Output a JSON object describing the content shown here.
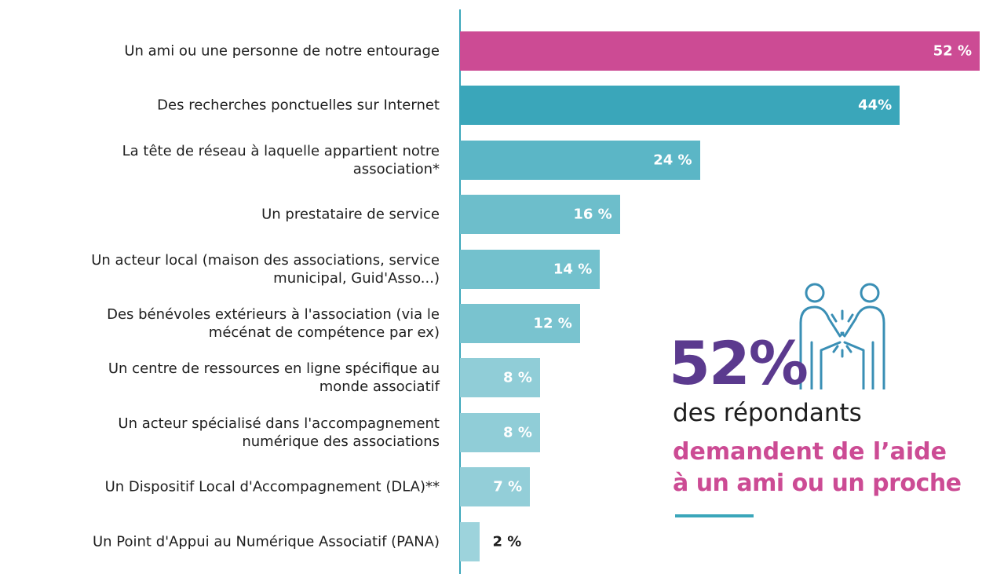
{
  "chart_data": {
    "type": "barh",
    "categories": [
      "Un ami ou une personne de notre entourage",
      "Des recherches ponctuelles sur Internet",
      "La tête de réseau à laquelle appartient notre\nassociation*",
      "Un prestataire de service",
      "Un acteur local (maison des associations, service\nmunicipal, Guid'Asso...)",
      "Des bénévoles extérieurs à l'association (via le\nmécénat de compétence par ex)",
      "Un centre de ressources en ligne spécifique au\nmonde associatif",
      "Un acteur spécialisé dans l'accompagnement\nnumérique des associations",
      "Un Dispositif Local d'Accompagnement (DLA)**",
      "Un Point d'Appui au Numérique Associatif (PANA)"
    ],
    "values": [
      52,
      44,
      24,
      16,
      14,
      12,
      8,
      8,
      7,
      2
    ],
    "value_labels": [
      "52 %",
      "44%",
      "24 %",
      "16 %",
      "14 %",
      "12 %",
      "8 %",
      "8 %",
      "7 %",
      "2 %"
    ],
    "colors": [
      "#cc4b94",
      "#3aa6ba",
      "#5bb6c6",
      "#6dbecb",
      "#73c1cd",
      "#79c3cf",
      "#90cdd7",
      "#90cdd7",
      "#93ced8",
      "#9dd3dc"
    ],
    "annotation": {
      "highlight": "52%",
      "line1": "des répondants",
      "line2": "demandent de l’aide",
      "line3": "à un ami ou un proche"
    }
  }
}
